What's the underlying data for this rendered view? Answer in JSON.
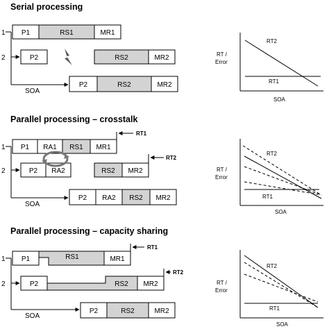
{
  "sections": [
    {
      "title": "Serial processing",
      "row_labels": [
        "1",
        "2"
      ],
      "row1": {
        "p": "P1",
        "rs": "RS1",
        "mr": "MR1"
      },
      "row2": {
        "p": "P2",
        "rs": "RS2",
        "mr": "MR2"
      },
      "soa_label": "SOA",
      "row3": {
        "p": "P2",
        "rs": "RS2",
        "mr": "MR2"
      },
      "graph": {
        "y_label_1": "RT /",
        "y_label_2": "Error",
        "x_label": "SOA",
        "rt2": "RT2",
        "rt1": "RT1"
      }
    },
    {
      "title": "Parallel processing – crosstalk",
      "row_labels": [
        "1",
        "2"
      ],
      "row1": {
        "p": "P1",
        "ra": "RA1",
        "rs": "RS1",
        "mr": "MR1"
      },
      "row2": {
        "p": "P2",
        "ra": "RA2",
        "rs": "RS2",
        "mr": "MR2"
      },
      "soa_label": "SOA",
      "row3": {
        "p": "P2",
        "ra": "RA2",
        "rs": "RS2",
        "mr": "MR2"
      },
      "rt_markers": [
        "RT1",
        "RT2"
      ],
      "graph": {
        "y_label_1": "RT /",
        "y_label_2": "Error",
        "x_label": "SOA",
        "rt2": "RT2",
        "rt1": "RT1"
      }
    },
    {
      "title": "Parallel processing – capacity sharing",
      "row_labels": [
        "1",
        "2"
      ],
      "row1": {
        "p": "P1",
        "rs": "RS1",
        "mr": "MR1"
      },
      "row2": {
        "p": "P2",
        "rs": "RS2",
        "mr": "MR2"
      },
      "soa_label": "SOA",
      "row3": {
        "p": "P2",
        "rs": "RS2",
        "mr": "MR2"
      },
      "rt_markers": [
        "RT1",
        "RT2"
      ],
      "graph": {
        "y_label_1": "RT /",
        "y_label_2": "Error",
        "x_label": "SOA",
        "rt2": "RT2",
        "rt1": "RT1"
      }
    }
  ],
  "colors": {
    "shaded": "#d3d3d3",
    "line": "#000000",
    "box": "#ffffff",
    "arrow": "#555555"
  }
}
